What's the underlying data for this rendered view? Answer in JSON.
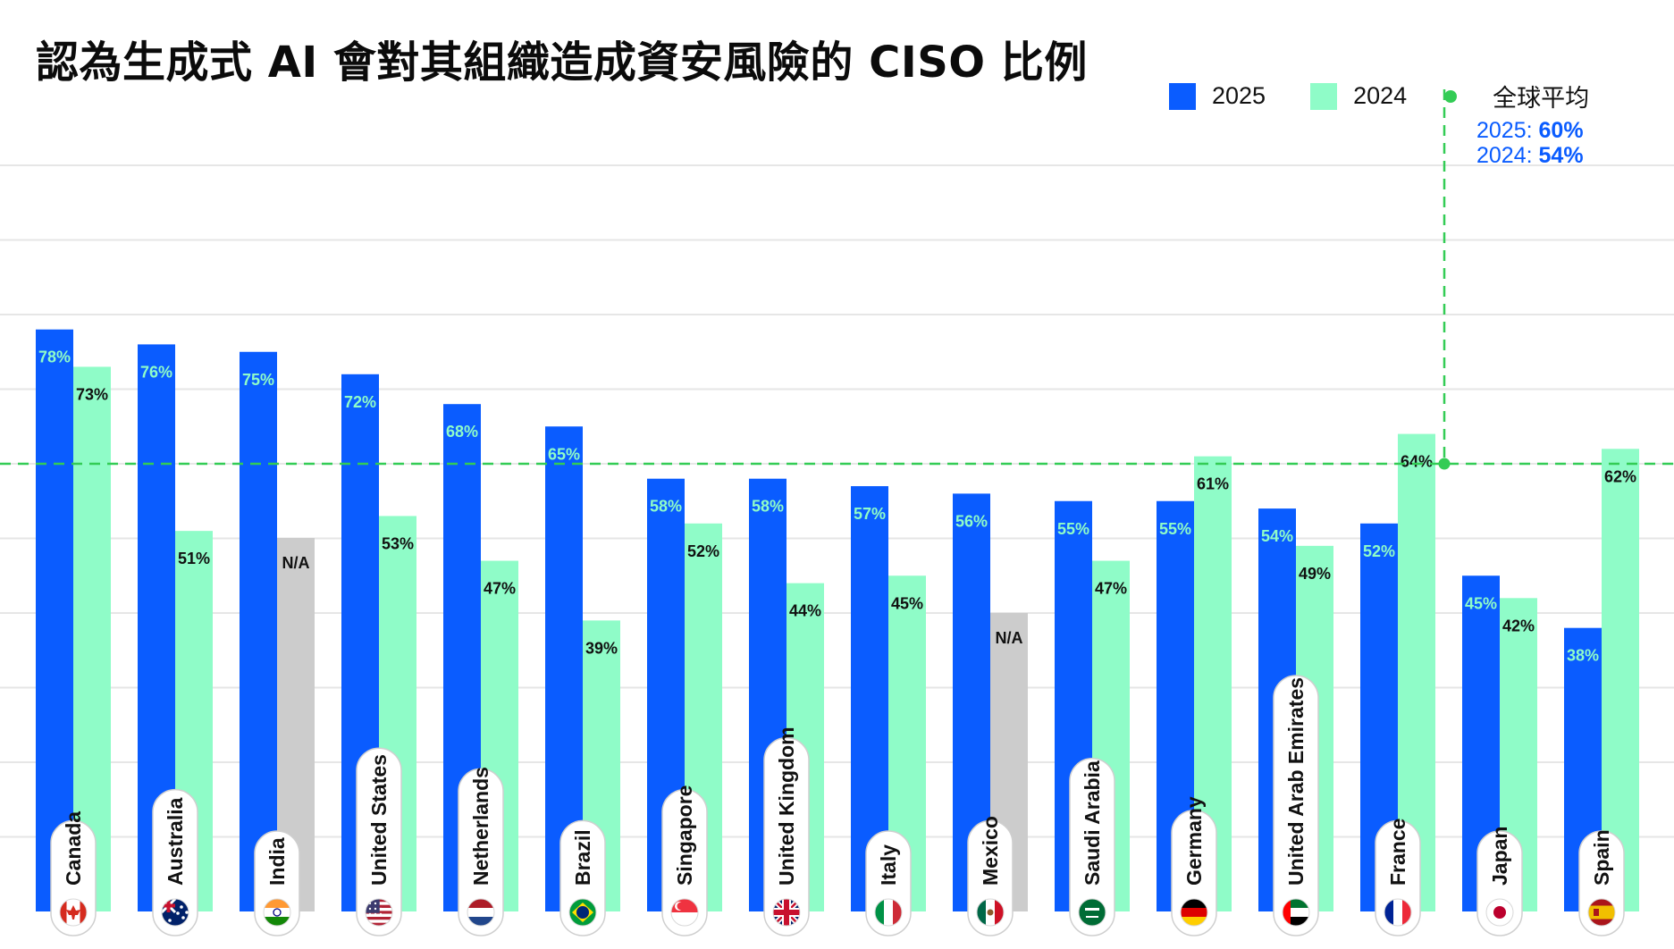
{
  "colors": {
    "series_2025": "#0a5cff",
    "series_2024": "#8ffcc8",
    "na_bar": "#cccccc",
    "average_line": "#33cc55",
    "gridline": "#e6e6e6"
  },
  "legend": {
    "items": [
      {
        "label": "2025",
        "color": "#0a5cff"
      },
      {
        "label": "2024",
        "color": "#8ffcc8"
      }
    ],
    "average_label": "全球平均"
  },
  "chart_data": {
    "type": "bar",
    "title": "認為生成式 AI 會對其組織造成資安風險的 CISO 比例",
    "xlabel": "",
    "ylabel": "",
    "ylim": [
      0,
      100
    ],
    "grid": true,
    "legend_position": "top-right",
    "categories": [
      "Canada",
      "Australia",
      "India",
      "United States",
      "Netherlands",
      "Brazil",
      "Singapore",
      "United Kingdom",
      "Italy",
      "Mexico",
      "Saudi Arabia",
      "Germany",
      "United Arab Emirates",
      "France",
      "Japan",
      "Spain"
    ],
    "flags": [
      "canada-flag-icon",
      "australia-flag-icon",
      "india-flag-icon",
      "united-states-flag-icon",
      "netherlands-flag-icon",
      "brazil-flag-icon",
      "singapore-flag-icon",
      "united-kingdom-flag-icon",
      "italy-flag-icon",
      "mexico-flag-icon",
      "saudi-arabia-flag-icon",
      "germany-flag-icon",
      "uae-flag-icon",
      "france-flag-icon",
      "japan-flag-icon",
      "spain-flag-icon"
    ],
    "series": [
      {
        "name": "2025",
        "values": [
          78,
          76,
          75,
          72,
          68,
          65,
          58,
          58,
          57,
          56,
          55,
          55,
          54,
          52,
          45,
          38
        ]
      },
      {
        "name": "2024",
        "values": [
          73,
          51,
          null,
          53,
          47,
          39,
          52,
          44,
          45,
          null,
          47,
          61,
          49,
          64,
          42,
          62
        ]
      }
    ],
    "na_label": "N/A",
    "average": {
      "name": "全球平均",
      "lines": [
        {
          "year": "2025",
          "value": 60,
          "label": "60%"
        },
        {
          "year": "2024",
          "value": 54,
          "label": "54%"
        }
      ]
    }
  }
}
